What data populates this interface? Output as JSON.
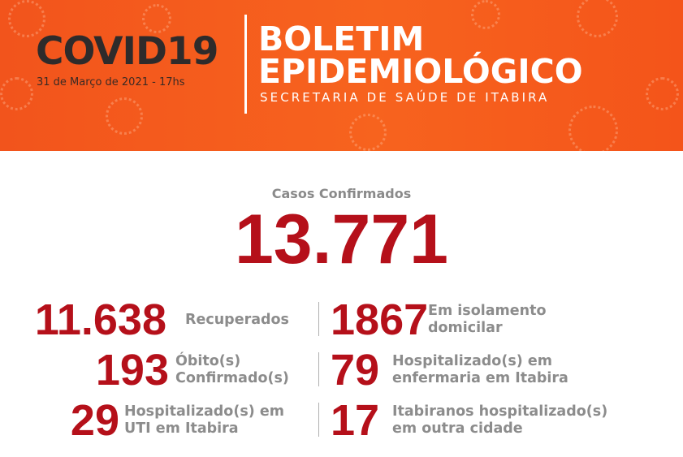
{
  "header": {
    "brand": "COVID19",
    "date": "31 de Março de 2021 - 17hs",
    "title_lines": [
      "BOLETIM",
      "EPIDEMIOLÓGICO"
    ],
    "subtitle": "SECRETARIA DE SAÚDE DE ITABIRA"
  },
  "headline": {
    "label": "Casos Confirmados",
    "value": "13.771"
  },
  "stats": {
    "left": [
      {
        "value": "11.638",
        "label": [
          "Recuperados"
        ]
      },
      {
        "value": "193",
        "label": [
          "Óbito(s)",
          "Confirmado(s)"
        ]
      },
      {
        "value": "29",
        "label": [
          "Hospitalizado(s) em",
          "UTI em Itabira"
        ]
      }
    ],
    "right": [
      {
        "value": "1867",
        "label": [
          "Em isolamento",
          "domicilar"
        ]
      },
      {
        "value": "79",
        "label": [
          "Hospitalizado(s) em",
          "enfermaria em Itabira"
        ]
      },
      {
        "value": "17",
        "label": [
          "Itabiranos hospitalizado(s)",
          "em outra cidade"
        ]
      }
    ]
  }
}
